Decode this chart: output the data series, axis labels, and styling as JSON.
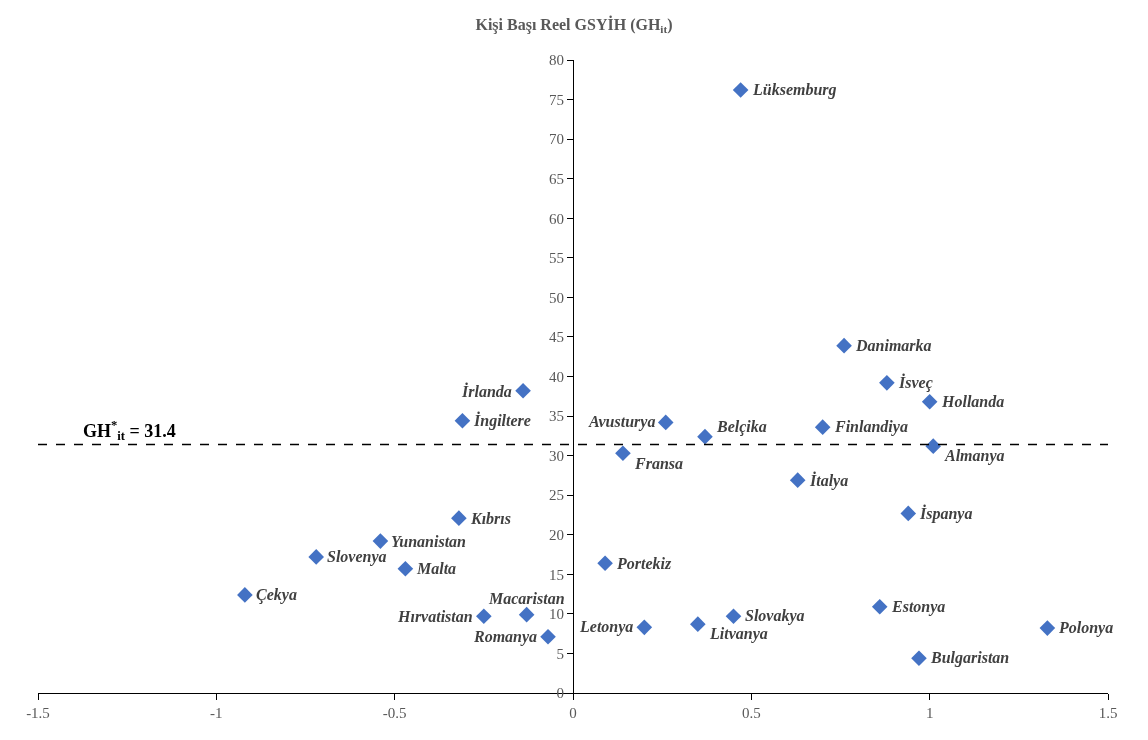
{
  "chart_data": {
    "type": "scatter",
    "title": "Kişi Başı Reel GSYİH (GH$_{it}$)",
    "marker": "diamond",
    "grid": false,
    "legend": false,
    "xlim": [
      -1.5,
      1.5
    ],
    "xticks": [
      -1.5,
      -1,
      -0.5,
      0,
      0.5,
      1,
      1.5
    ],
    "ylim": [
      0,
      80
    ],
    "yticks": [
      0,
      5,
      10,
      15,
      20,
      25,
      30,
      35,
      40,
      45,
      50,
      55,
      60,
      65,
      70,
      75,
      80
    ],
    "ref_lines": [
      {
        "axis": "y",
        "value": 31.4,
        "label": "GH$^{*}$$_{it}$ = 31.4",
        "color": "#000000",
        "line_style": "dashed"
      }
    ],
    "series": [
      {
        "name": "Lüksemburg",
        "color": "#4472c4",
        "x": [
          0.47
        ],
        "values": [
          76.2
        ]
      },
      {
        "name": "Danimarka",
        "color": "#4472c4",
        "x": [
          0.76
        ],
        "values": [
          43.9
        ]
      },
      {
        "name": "İsveç",
        "color": "#4472c4",
        "x": [
          0.88
        ],
        "values": [
          39.2
        ]
      },
      {
        "name": "Hollanda",
        "color": "#4472c4",
        "x": [
          1.0
        ],
        "values": [
          36.8
        ]
      },
      {
        "name": "Finlandiya",
        "color": "#4472c4",
        "x": [
          0.7
        ],
        "values": [
          33.6
        ]
      },
      {
        "name": "Almanya",
        "color": "#4472c4",
        "x": [
          1.01
        ],
        "values": [
          31.2
        ]
      },
      {
        "name": "Belçika",
        "color": "#4472c4",
        "x": [
          0.37
        ],
        "values": [
          32.4
        ]
      },
      {
        "name": "Avusturya",
        "color": "#4472c4",
        "x": [
          0.26
        ],
        "values": [
          34.2
        ]
      },
      {
        "name": "Fransa",
        "color": "#4472c4",
        "x": [
          0.14
        ],
        "values": [
          30.3
        ]
      },
      {
        "name": "İrlanda",
        "color": "#4472c4",
        "x": [
          -0.14
        ],
        "values": [
          38.2
        ]
      },
      {
        "name": "İngiltere",
        "color": "#4472c4",
        "x": [
          -0.31
        ],
        "values": [
          34.4
        ]
      },
      {
        "name": "İtalya",
        "color": "#4472c4",
        "x": [
          0.63
        ],
        "values": [
          26.9
        ]
      },
      {
        "name": "İspanya",
        "color": "#4472c4",
        "x": [
          0.94
        ],
        "values": [
          22.7
        ]
      },
      {
        "name": "Kıbrıs",
        "color": "#4472c4",
        "x": [
          -0.32
        ],
        "values": [
          22.1
        ]
      },
      {
        "name": "Yunanistan",
        "color": "#4472c4",
        "x": [
          -0.54
        ],
        "values": [
          19.2
        ]
      },
      {
        "name": "Slovenya",
        "color": "#4472c4",
        "x": [
          -0.72
        ],
        "values": [
          17.2
        ]
      },
      {
        "name": "Malta",
        "color": "#4472c4",
        "x": [
          -0.47
        ],
        "values": [
          15.7
        ]
      },
      {
        "name": "Çekya",
        "color": "#4472c4",
        "x": [
          -0.92
        ],
        "values": [
          12.4
        ]
      },
      {
        "name": "Portekiz",
        "color": "#4472c4",
        "x": [
          0.09
        ],
        "values": [
          16.4
        ]
      },
      {
        "name": "Hırvatistan",
        "color": "#4472c4",
        "x": [
          -0.25
        ],
        "values": [
          9.7
        ]
      },
      {
        "name": "Macaristan",
        "color": "#4472c4",
        "x": [
          -0.13
        ],
        "values": [
          9.9
        ]
      },
      {
        "name": "Romanya",
        "color": "#4472c4",
        "x": [
          -0.07
        ],
        "values": [
          7.1
        ]
      },
      {
        "name": "Letonya",
        "color": "#4472c4",
        "x": [
          0.2
        ],
        "values": [
          8.3
        ]
      },
      {
        "name": "Litvanya",
        "color": "#4472c4",
        "x": [
          0.35
        ],
        "values": [
          8.7
        ]
      },
      {
        "name": "Slovakya",
        "color": "#4472c4",
        "x": [
          0.45
        ],
        "values": [
          9.7
        ]
      },
      {
        "name": "Estonya",
        "color": "#4472c4",
        "x": [
          0.86
        ],
        "values": [
          10.9
        ]
      },
      {
        "name": "Polonya",
        "color": "#4472c4",
        "x": [
          1.33
        ],
        "values": [
          8.2
        ]
      },
      {
        "name": "Bulgaristan",
        "color": "#4472c4",
        "x": [
          0.97
        ],
        "values": [
          4.4
        ]
      }
    ]
  }
}
